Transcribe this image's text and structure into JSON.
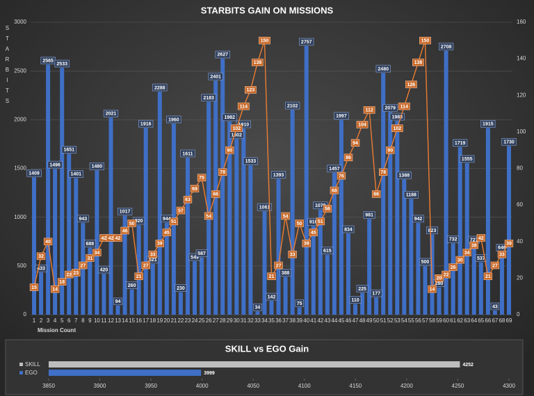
{
  "chart_data": [
    {
      "type": "bar_line",
      "title": "STARBITS GAIN ON MISSIONS",
      "y_label": "STARBITS",
      "x_label": "Mission Count",
      "categories": [
        "1",
        "2",
        "3",
        "4",
        "5",
        "6",
        "7",
        "8",
        "9",
        "10",
        "11",
        "12",
        "13",
        "14",
        "15",
        "16",
        "17",
        "18",
        "19",
        "20",
        "21",
        "22",
        "23",
        "24",
        "25",
        "26",
        "27",
        "28",
        "29",
        "30",
        "31",
        "32",
        "33",
        "34",
        "35",
        "36",
        "37",
        "38",
        "39",
        "40",
        "41",
        "42",
        "43",
        "44",
        "45",
        "46",
        "47",
        "48",
        "49",
        "50",
        "51",
        "52",
        "53",
        "54",
        "55",
        "56",
        "57",
        "58",
        "59",
        "60",
        "61",
        "62",
        "63",
        "64",
        "65",
        "66",
        "67",
        "68",
        "69"
      ],
      "series": [
        {
          "type": "bar",
          "color": "#3f6fc6",
          "values": [
            1409,
            433,
            2565,
            1496,
            2533,
            1651,
            1401,
            943,
            688,
            1480,
            420,
            2021,
            94,
            1017,
            260,
            920,
            1916,
            521,
            2288,
            944,
            1960,
            230,
            1611,
            549,
            587,
            2183,
            2401,
            2627,
            1982,
            1802,
            1910,
            1533,
            34,
            1061,
            142,
            1393,
            388,
            2102,
            75,
            2757,
            910,
            1078,
            615,
            1457,
            1997,
            834,
            110,
            225,
            981,
            177,
            2480,
            2079,
            1988,
            1388,
            1188,
            942,
            500,
            823,
            280,
            2708,
            732,
            1719,
            1555,
            727,
            537,
            1915,
            43,
            646,
            1730
          ]
        },
        {
          "type": "line",
          "axis": "y2",
          "color": "#ed7d31",
          "values": [
            15,
            32,
            40,
            14,
            18,
            22,
            23,
            27,
            31,
            34,
            42,
            42,
            42,
            46,
            50,
            21,
            27,
            33,
            39,
            45,
            51,
            57,
            63,
            69,
            75,
            54,
            66,
            78,
            90,
            102,
            114,
            123,
            138,
            150,
            21,
            27,
            54,
            33,
            50,
            39,
            45,
            51,
            58,
            68,
            76,
            86,
            94,
            104,
            112,
            66,
            78,
            90,
            102,
            114,
            126,
            138,
            150,
            14,
            20,
            22,
            26,
            30,
            34,
            38,
            42,
            21,
            27,
            33,
            39
          ]
        }
      ],
      "ylim": [
        0,
        3000
      ],
      "yticks": [
        0,
        500,
        1000,
        1500,
        2000,
        2500,
        3000
      ],
      "y2lim": [
        0,
        160
      ],
      "y2ticks": [
        0,
        20,
        40,
        60,
        80,
        100,
        120,
        140,
        160
      ],
      "grid": true
    },
    {
      "type": "hbar",
      "title": "SKILL vs EGO Gain",
      "categories": [
        "SKILL",
        "EGO"
      ],
      "values": [
        4252,
        3999
      ],
      "colors": [
        "#bdbdbd",
        "#3f6fc6"
      ],
      "xlim": [
        3850,
        4300
      ],
      "xticks": [
        3850,
        3900,
        3950,
        4000,
        4050,
        4100,
        4150,
        4200,
        4250,
        4300
      ]
    }
  ]
}
